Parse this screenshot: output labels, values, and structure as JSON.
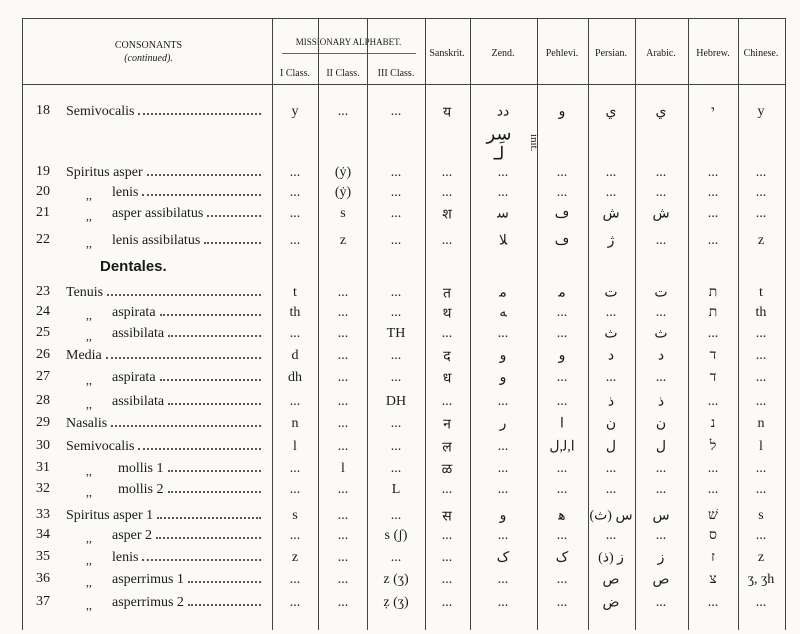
{
  "header": {
    "consonants": "CONSONANTS",
    "continued": "(continued).",
    "missionary": "MISSIONARY ALPHABET.",
    "columns": [
      "I Class.",
      "II Class.",
      "III Class.",
      "Sanskrit.",
      "Zend.",
      "Pehlevi.",
      "Persian.",
      "Arabic.",
      "Hebrew.",
      "Chinese."
    ]
  },
  "rows": [
    {
      "num": "18",
      "label": "Semivocalis",
      "cells": [
        "y",
        "...",
        "...",
        "य",
        "دد",
        "و",
        "ي",
        "ي",
        "י",
        "y"
      ],
      "zend_extra": [
        "سِر",
        "ﻟـ"
      ],
      "note": "init."
    },
    {
      "num": "19",
      "label": "Spiritus asper",
      "cells": [
        "...",
        "(ẏ)",
        "...",
        "...",
        "...",
        "...",
        "...",
        "...",
        "...",
        "..."
      ]
    },
    {
      "num": "20",
      "ditto": ",,",
      "label": "lenis",
      "cells": [
        "...",
        "(ẏ)",
        "...",
        "...",
        "...",
        "...",
        "...",
        "...",
        "...",
        "..."
      ]
    },
    {
      "num": "21",
      "ditto": ",,",
      "label": "asper assibilatus",
      "cells": [
        "...",
        "s",
        "...",
        "श",
        "ﺳ",
        "ڡ",
        "ش",
        "ش",
        "...",
        "..."
      ]
    },
    {
      "num": "22",
      "ditto": ",,",
      "label": "lenis assibilatus",
      "cells": [
        "...",
        "z",
        "...",
        "...",
        "ﻼ",
        "ڡ",
        "ژ",
        "...",
        "...",
        "z"
      ]
    },
    {
      "section": "Dentales."
    },
    {
      "num": "23",
      "label": "Tenuis",
      "cells": [
        "t",
        "...",
        "...",
        "त",
        "ﻣ",
        "ﻣ",
        "ت",
        "ت",
        "ת",
        "t"
      ]
    },
    {
      "num": "24",
      "ditto": ",,",
      "label": "aspirata",
      "cells": [
        "th",
        "...",
        "...",
        "थ",
        "ﻪ",
        "...",
        "...",
        "...",
        "ת",
        "th"
      ]
    },
    {
      "num": "25",
      "ditto": ",,",
      "label": "assibilata",
      "cells": [
        "...",
        "...",
        "TH",
        "...",
        "...",
        "...",
        "ث",
        "ث",
        "...",
        "..."
      ]
    },
    {
      "num": "26",
      "label": "Media",
      "cells": [
        "d",
        "...",
        "...",
        "द",
        "و",
        "و",
        "د",
        "د",
        "ד",
        "..."
      ]
    },
    {
      "num": "27",
      "ditto": ",,",
      "label": "aspirata",
      "cells": [
        "dh",
        "...",
        "...",
        "ध",
        "ﻭ",
        "...",
        "...",
        "...",
        "ד",
        "..."
      ]
    },
    {
      "num": "28",
      "ditto": ",,",
      "label": "assibilata",
      "cells": [
        "...",
        "...",
        "DH",
        "...",
        "...",
        "...",
        "ذ",
        "ذ",
        "...",
        "..."
      ]
    },
    {
      "num": "29",
      "label": "Nasalis",
      "cells": [
        "n",
        "...",
        "...",
        "न",
        "ﺭ",
        "ا",
        "ن",
        "ن",
        "נ",
        "n"
      ]
    },
    {
      "num": "30",
      "label": "Semivocalis",
      "cells": [
        "l",
        "...",
        "...",
        "ल",
        "...",
        "ا,ﻟ,ﻝ",
        "ل",
        "ل",
        "ל",
        "l"
      ]
    },
    {
      "num": "31",
      "ditto": ",,",
      "label": "mollis 1",
      "cells": [
        "...",
        "l",
        "...",
        "ळ",
        "...",
        "...",
        "...",
        "...",
        "...",
        "..."
      ]
    },
    {
      "num": "32",
      "ditto": ",,",
      "label": "mollis 2",
      "cells": [
        "...",
        "...",
        "L",
        "...",
        "...",
        "...",
        "...",
        "...",
        "...",
        "..."
      ]
    },
    {
      "num": "33",
      "label": "Spiritus asper 1",
      "cells": [
        "s",
        "...",
        "...",
        "स",
        "ﻭ",
        "ﻫ",
        "س (ث)",
        "س",
        "שׁ",
        "s"
      ]
    },
    {
      "num": "34",
      "ditto": ",,",
      "label": "asper 2",
      "cells": [
        "...",
        "...",
        "s (ʃ)",
        "...",
        "...",
        "...",
        "...",
        "...",
        "ס",
        "..."
      ]
    },
    {
      "num": "35",
      "ditto": ",,",
      "label": "lenis",
      "cells": [
        "z",
        "...",
        "...",
        "...",
        "ﮎ",
        "ﮎ",
        "ز (ذ)",
        "ز",
        "ז",
        "z"
      ]
    },
    {
      "num": "36",
      "ditto": ",,",
      "label": "asperrimus 1",
      "cells": [
        "...",
        "...",
        "z (ʒ)",
        "...",
        "...",
        "...",
        "ص",
        "ص",
        "צ",
        "ʒ, ʒh"
      ]
    },
    {
      "num": "37",
      "ditto": ",,",
      "label": "asperrimus 2",
      "cells": [
        "...",
        "...",
        "ẓ (ʒ)",
        "...",
        "...",
        "...",
        "ض",
        "...",
        "...",
        "..."
      ]
    }
  ]
}
